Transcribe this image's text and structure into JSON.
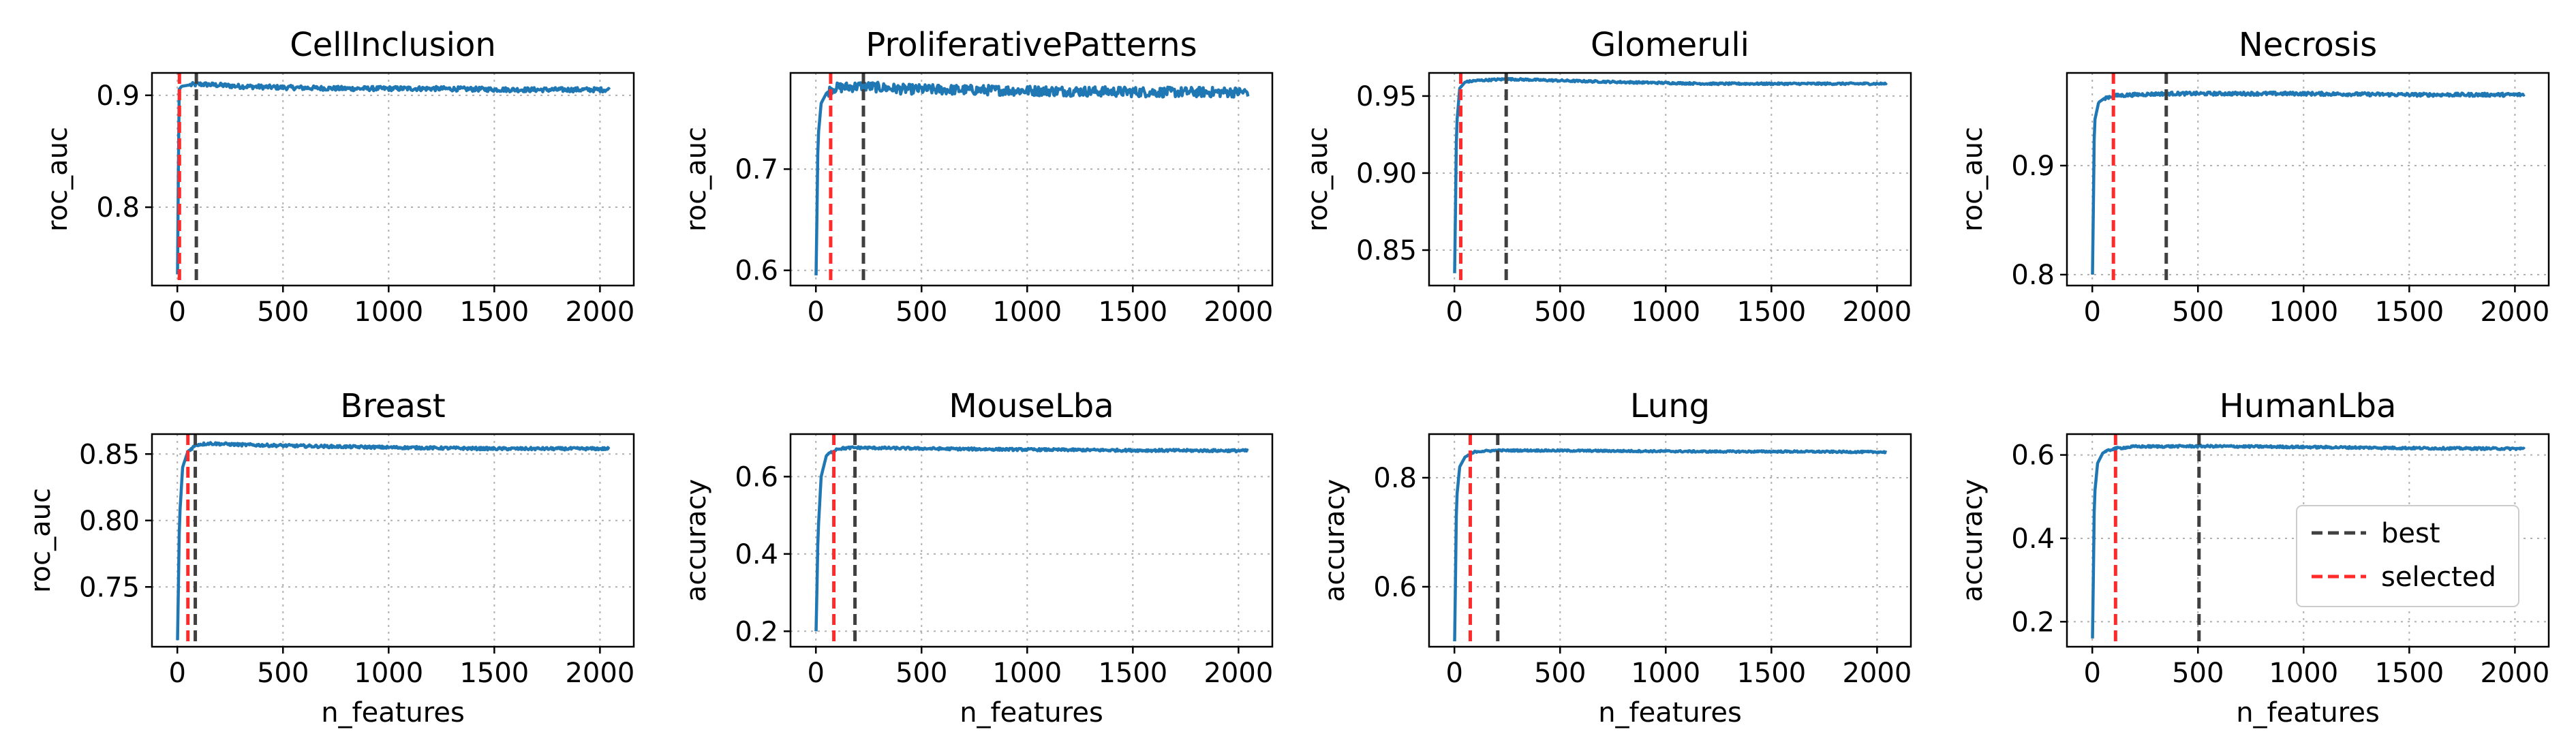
{
  "chart_data": [
    {
      "type": "line",
      "title": "CellInclusion",
      "ylabel": "roc_auc",
      "xlabel": "",
      "xlim": [
        -120,
        2160
      ],
      "ylim": [
        0.73,
        0.92
      ],
      "xticks": [
        0,
        500,
        1000,
        1500,
        2000
      ],
      "yticks": [
        0.8,
        0.9
      ],
      "xtick_labels": [
        "0",
        "500",
        "1000",
        "1500",
        "2000"
      ],
      "ytick_labels": [
        "0.8",
        "0.9"
      ],
      "series": [
        {
          "x": [
            1,
            8,
            20,
            50,
            100,
            200,
            300,
            500,
            800,
            1200,
            1600,
            2048
          ],
          "y": [
            0.74,
            0.905,
            0.908,
            0.909,
            0.91,
            0.909,
            0.908,
            0.907,
            0.906,
            0.906,
            0.905,
            0.905
          ]
        }
      ],
      "noise": 0.002,
      "best": 90,
      "selected": 10
    },
    {
      "type": "line",
      "title": "ProliferativePatterns",
      "ylabel": "roc_auc",
      "xlabel": "",
      "xlim": [
        -120,
        2160
      ],
      "ylim": [
        0.585,
        0.795
      ],
      "xticks": [
        0,
        500,
        1000,
        1500,
        2000
      ],
      "yticks": [
        0.6,
        0.7
      ],
      "xtick_labels": [
        "0",
        "500",
        "1000",
        "1500",
        "2000"
      ],
      "ytick_labels": [
        "0.6",
        "0.7"
      ],
      "series": [
        {
          "x": [
            1,
            10,
            25,
            50,
            80,
            150,
            220,
            400,
            800,
            1200,
            1600,
            2048
          ],
          "y": [
            0.595,
            0.73,
            0.765,
            0.775,
            0.78,
            0.781,
            0.782,
            0.779,
            0.778,
            0.777,
            0.776,
            0.776
          ]
        }
      ],
      "noise": 0.005,
      "best": 225,
      "selected": 70
    },
    {
      "type": "line",
      "title": "Glomeruli",
      "ylabel": "roc_auc",
      "xlabel": "",
      "xlim": [
        -120,
        2160
      ],
      "ylim": [
        0.827,
        0.965
      ],
      "xticks": [
        0,
        500,
        1000,
        1500,
        2000
      ],
      "yticks": [
        0.85,
        0.9,
        0.95
      ],
      "xtick_labels": [
        "0",
        "500",
        "1000",
        "1500",
        "2000"
      ],
      "ytick_labels": [
        "0.85",
        "0.90",
        "0.95"
      ],
      "series": [
        {
          "x": [
            1,
            10,
            25,
            50,
            100,
            250,
            500,
            800,
            1200,
            1600,
            2048
          ],
          "y": [
            0.835,
            0.93,
            0.955,
            0.959,
            0.96,
            0.961,
            0.96,
            0.959,
            0.958,
            0.958,
            0.958
          ]
        }
      ],
      "noise": 0.0006,
      "best": 245,
      "selected": 30
    },
    {
      "type": "line",
      "title": "Necrosis",
      "ylabel": "roc_auc",
      "xlabel": "",
      "xlim": [
        -120,
        2160
      ],
      "ylim": [
        0.79,
        0.985
      ],
      "xticks": [
        0,
        500,
        1000,
        1500,
        2000
      ],
      "yticks": [
        0.8,
        0.9
      ],
      "xtick_labels": [
        "0",
        "500",
        "1000",
        "1500",
        "2000"
      ],
      "ytick_labels": [
        "0.8",
        "0.9"
      ],
      "series": [
        {
          "x": [
            1,
            10,
            30,
            60,
            100,
            200,
            350,
            600,
            1000,
            1500,
            2048
          ],
          "y": [
            0.8,
            0.94,
            0.958,
            0.962,
            0.964,
            0.965,
            0.966,
            0.966,
            0.966,
            0.965,
            0.965
          ]
        }
      ],
      "noise": 0.0015,
      "best": 350,
      "selected": 100
    },
    {
      "type": "line",
      "title": "Breast",
      "ylabel": "roc_auc",
      "xlabel": "n_features",
      "xlim": [
        -120,
        2160
      ],
      "ylim": [
        0.705,
        0.865
      ],
      "xticks": [
        0,
        500,
        1000,
        1500,
        2000
      ],
      "yticks": [
        0.75,
        0.8,
        0.85
      ],
      "xtick_labels": [
        "0",
        "500",
        "1000",
        "1500",
        "2000"
      ],
      "ytick_labels": [
        "0.75",
        "0.80",
        "0.85"
      ],
      "series": [
        {
          "x": [
            1,
            10,
            25,
            50,
            90,
            150,
            300,
            600,
            1000,
            1500,
            2048
          ],
          "y": [
            0.71,
            0.8,
            0.84,
            0.852,
            0.857,
            0.858,
            0.857,
            0.856,
            0.855,
            0.854,
            0.854
          ]
        }
      ],
      "noise": 0.001,
      "best": 85,
      "selected": 50
    },
    {
      "type": "line",
      "title": "MouseLba",
      "ylabel": "accuracy",
      "xlabel": "n_features",
      "xlim": [
        -120,
        2160
      ],
      "ylim": [
        0.16,
        0.71
      ],
      "xticks": [
        0,
        500,
        1000,
        1500,
        2000
      ],
      "yticks": [
        0.2,
        0.4,
        0.6
      ],
      "xtick_labels": [
        "0",
        "500",
        "1000",
        "1500",
        "2000"
      ],
      "ytick_labels": [
        "0.2",
        "0.4",
        "0.6"
      ],
      "series": [
        {
          "x": [
            1,
            10,
            25,
            50,
            100,
            180,
            300,
            600,
            1000,
            1500,
            2048
          ],
          "y": [
            0.2,
            0.45,
            0.6,
            0.655,
            0.672,
            0.675,
            0.674,
            0.672,
            0.67,
            0.668,
            0.667
          ]
        }
      ],
      "noise": 0.003,
      "best": 185,
      "selected": 85
    },
    {
      "type": "line",
      "title": "Lung",
      "ylabel": "accuracy",
      "xlabel": "n_features",
      "xlim": [
        -120,
        2160
      ],
      "ylim": [
        0.49,
        0.88
      ],
      "xticks": [
        0,
        500,
        1000,
        1500,
        2000
      ],
      "yticks": [
        0.6,
        0.8
      ],
      "xtick_labels": [
        "0",
        "500",
        "1000",
        "1500",
        "2000"
      ],
      "ytick_labels": [
        "0.6",
        "0.8"
      ],
      "series": [
        {
          "x": [
            1,
            10,
            25,
            50,
            100,
            200,
            400,
            800,
            1200,
            1600,
            2048
          ],
          "y": [
            0.5,
            0.76,
            0.82,
            0.838,
            0.848,
            0.85,
            0.85,
            0.849,
            0.848,
            0.848,
            0.847
          ]
        }
      ],
      "noise": 0.0015,
      "best": 205,
      "selected": 75
    },
    {
      "type": "line",
      "title": "HumanLba",
      "ylabel": "accuracy",
      "xlabel": "n_features",
      "xlim": [
        -120,
        2160
      ],
      "ylim": [
        0.14,
        0.65
      ],
      "xticks": [
        0,
        500,
        1000,
        1500,
        2000
      ],
      "yticks": [
        0.2,
        0.4,
        0.6
      ],
      "xtick_labels": [
        "0",
        "500",
        "1000",
        "1500",
        "2000"
      ],
      "ytick_labels": [
        "0.2",
        "0.4",
        "0.6"
      ],
      "series": [
        {
          "x": [
            1,
            10,
            25,
            50,
            100,
            200,
            500,
            800,
            1200,
            1600,
            2048
          ],
          "y": [
            0.16,
            0.5,
            0.58,
            0.605,
            0.615,
            0.62,
            0.621,
            0.62,
            0.618,
            0.616,
            0.615
          ]
        }
      ],
      "noise": 0.0025,
      "best": 505,
      "selected": 110
    }
  ],
  "legend": {
    "placement": "lower-right of last panel",
    "entries": [
      {
        "label": "best",
        "color": "#404040",
        "style": "dashed"
      },
      {
        "label": "selected",
        "color": "#ff2a2a",
        "style": "dashed"
      }
    ]
  },
  "colors": {
    "line": "#1f77b4",
    "best": "#404040",
    "selected": "#ff2a2a",
    "grid": "#b0b0b0"
  }
}
